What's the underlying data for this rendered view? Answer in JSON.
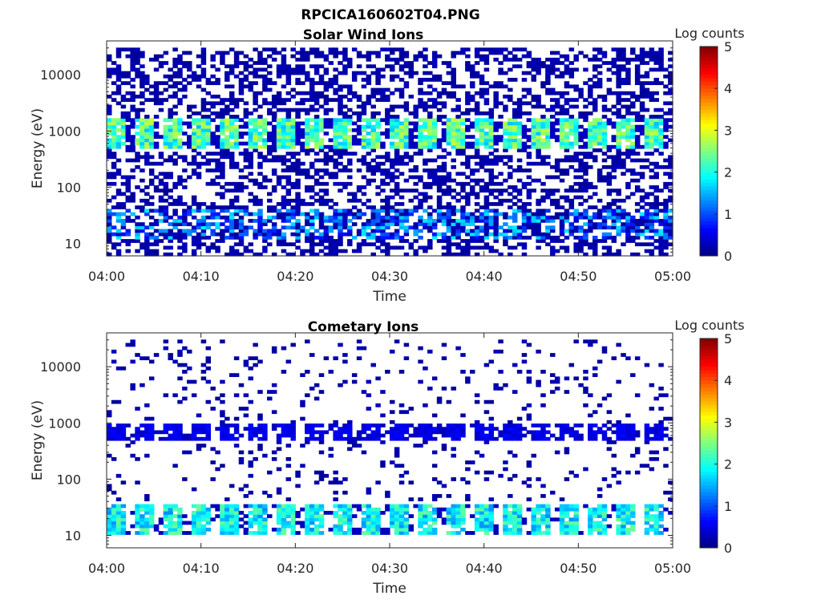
{
  "figure_title": "RPCICA160602T04.PNG",
  "chart_data": [
    {
      "type": "heatmap",
      "title": "Solar Wind Ions",
      "xlabel": "Time",
      "ylabel": "Energy (eV)",
      "x_range": [
        "04:00",
        "05:00"
      ],
      "x_ticks": [
        "04:00",
        "04:10",
        "04:20",
        "04:30",
        "04:40",
        "04:50",
        "05:00"
      ],
      "y_scale": "log",
      "y_range": [
        6,
        40000
      ],
      "y_ticks": [
        {
          "value": 10,
          "label": "10"
        },
        {
          "value": 100,
          "label": "100"
        },
        {
          "value": 1000,
          "label": "1000"
        },
        {
          "value": 10000,
          "label": "10000"
        }
      ],
      "colorbar": {
        "label": "Log counts",
        "range": [
          0,
          5
        ],
        "ticks": [
          "0",
          "1",
          "2",
          "3",
          "4",
          "5"
        ],
        "colormap": "jet"
      },
      "features": [
        {
          "name": "background",
          "energy_range_eV": [
            6,
            30000
          ],
          "log_counts": 0.2
        },
        {
          "name": "solar wind beam",
          "energy_range_eV": [
            500,
            1600
          ],
          "log_counts": 2.6,
          "burst_period_min": 3
        },
        {
          "name": "low-energy band",
          "energy_range_eV": [
            12,
            40
          ],
          "log_counts": 1.2
        }
      ]
    },
    {
      "type": "heatmap",
      "title": "Cometary Ions",
      "xlabel": "Time",
      "ylabel": "Energy (eV)",
      "x_range": [
        "04:00",
        "05:00"
      ],
      "x_ticks": [
        "04:00",
        "04:10",
        "04:20",
        "04:30",
        "04:40",
        "04:50",
        "05:00"
      ],
      "y_scale": "log",
      "y_range": [
        6,
        40000
      ],
      "y_ticks": [
        {
          "value": 10,
          "label": "10"
        },
        {
          "value": 100,
          "label": "100"
        },
        {
          "value": 1000,
          "label": "1000"
        },
        {
          "value": 10000,
          "label": "10000"
        }
      ],
      "colorbar": {
        "label": "Log counts",
        "range": [
          0,
          5
        ],
        "ticks": [
          "0",
          "1",
          "2",
          "3",
          "4",
          "5"
        ],
        "colormap": "jet"
      },
      "features": [
        {
          "name": "sparse background",
          "energy_range_eV": [
            40,
            30000
          ],
          "log_counts": 0.2
        },
        {
          "name": "solar wind leakage",
          "energy_range_eV": [
            500,
            1000
          ],
          "log_counts": 0.6,
          "burst_period_min": 3
        },
        {
          "name": "cometary ion band",
          "energy_range_eV": [
            10,
            35
          ],
          "log_counts": 2.2,
          "burst_period_min": 3
        }
      ]
    }
  ]
}
